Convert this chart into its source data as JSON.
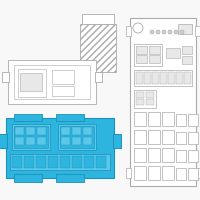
{
  "bg_color": "#f8f8f8",
  "line_color": "#aaaaaa",
  "highlight_color": "#2db5e0",
  "highlight_edge": "#1a90bb",
  "white": "#ffffff",
  "light_gray": "#e8e8e8",
  "mid_gray": "#d0d0d0"
}
